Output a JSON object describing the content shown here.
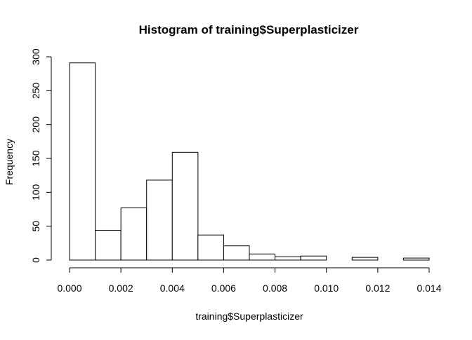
{
  "chart_data": {
    "type": "bar",
    "title": "Histogram of training$Superplasticizer",
    "xlabel": "training$Superplasticizer",
    "ylabel": "Frequency",
    "bin_edges": [
      0.0,
      0.001,
      0.002,
      0.003,
      0.004,
      0.005,
      0.006,
      0.007,
      0.008,
      0.009,
      0.01,
      0.011,
      0.012,
      0.013,
      0.014
    ],
    "values": [
      291,
      44,
      77,
      118,
      159,
      37,
      21,
      9,
      5,
      6,
      0,
      4,
      0,
      3
    ],
    "xlim": [
      0.0,
      0.014
    ],
    "ylim": [
      0,
      300
    ],
    "x_ticks": [
      0.0,
      0.002,
      0.004,
      0.006,
      0.008,
      0.01,
      0.012,
      0.014
    ],
    "x_tick_labels": [
      "0.000",
      "0.002",
      "0.004",
      "0.006",
      "0.008",
      "0.010",
      "0.012",
      "0.014"
    ],
    "y_ticks": [
      0,
      50,
      100,
      150,
      200,
      250,
      300
    ],
    "y_tick_labels": [
      "0",
      "50",
      "100",
      "150",
      "200",
      "250",
      "300"
    ],
    "grid": false,
    "legend": "none",
    "bar_fill": "#ffffff",
    "bar_stroke": "#000000"
  }
}
